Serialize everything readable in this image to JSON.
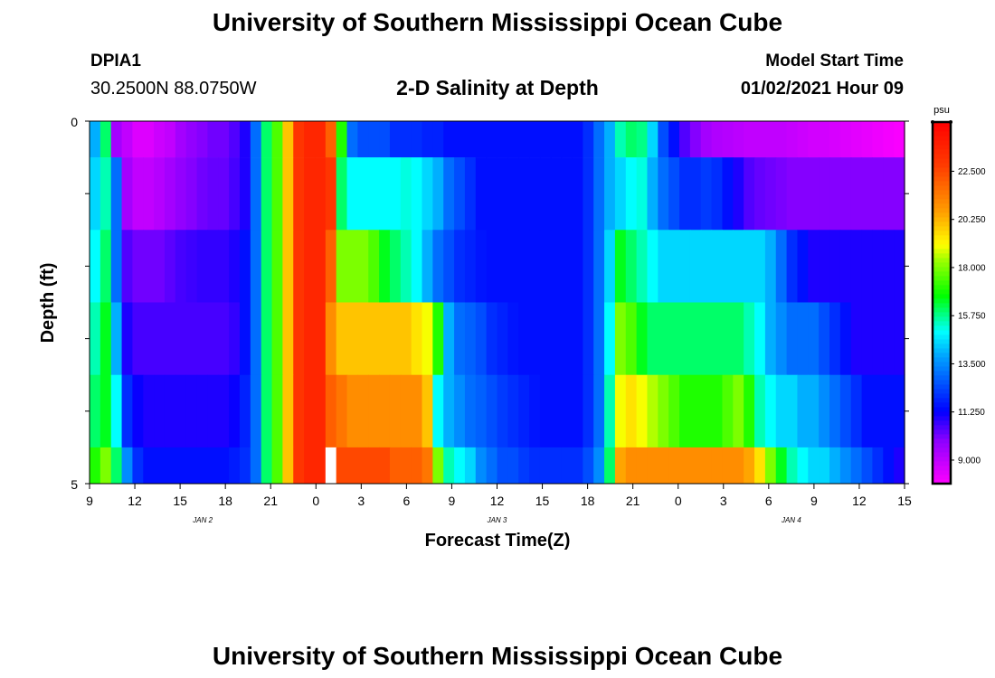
{
  "header": {
    "title": "University of Southern Mississippi Ocean Cube",
    "station_id": "DPIA1",
    "station_coords": "30.2500N 88.0750W",
    "plot_title": "2-D Salinity at Depth",
    "model_start_label": "Model Start Time",
    "model_start_value": "01/02/2021 Hour 09"
  },
  "footer": {
    "title": "University of Southern Mississippi Ocean Cube"
  },
  "chart_data": {
    "type": "heatmap",
    "title": "2-D Salinity at Depth",
    "xlabel": "Forecast Time(Z)",
    "ylabel": "Depth (ft)",
    "units": "psu",
    "x_ticks": [
      "9",
      "12",
      "15",
      "18",
      "21",
      "0",
      "3",
      "6",
      "9",
      "12",
      "15",
      "18",
      "21",
      "0",
      "3",
      "6",
      "9",
      "12",
      "15"
    ],
    "day_labels": [
      {
        "label": "JAN 2",
        "tick_index": 2.5
      },
      {
        "label": "JAN 3",
        "tick_index": 9
      },
      {
        "label": "JAN 4",
        "tick_index": 15.5
      }
    ],
    "y_ticks": [
      "0",
      "5"
    ],
    "yrange": [
      0,
      5
    ],
    "hours_range": [
      0,
      54
    ],
    "colorbar": {
      "ticks": [
        "9.000",
        "11.250",
        "13.500",
        "15.750",
        "18.000",
        "20.250",
        "22.500"
      ],
      "range": [
        7.9,
        24.8
      ]
    },
    "layer_bounds_ft": [
      0,
      0.5,
      1.5,
      2.5,
      3.5,
      4.5,
      5
    ],
    "series": [
      {
        "name": "layer 1 (0-0.5 ft)",
        "values": [
          14,
          16,
          9.5,
          9,
          8.5,
          8.5,
          8.8,
          9,
          9.5,
          9.8,
          10,
          10.2,
          10.2,
          10.5,
          11,
          13,
          16,
          17.5,
          20,
          23,
          23.5,
          23.5,
          22,
          17,
          13,
          12.5,
          12.5,
          12.5,
          12,
          12,
          12,
          11.8,
          11.8,
          11.5,
          11.5,
          11.5,
          11.5,
          11.5,
          11.5,
          11.5,
          11.5,
          11.5,
          11.5,
          11.5,
          11.5,
          11.5,
          12,
          13,
          14,
          15.5,
          16,
          15.8,
          14.5,
          12.5,
          11.5,
          10.5,
          10,
          9.5,
          9.3,
          9.2,
          9.1,
          9,
          9,
          9,
          9,
          8.9,
          8.8,
          8.7,
          8.7,
          8.6,
          8.5,
          8.4,
          8.3,
          8.2,
          8.1,
          8.0
        ]
      },
      {
        "name": "layer 2 (0.5-1.5 ft)",
        "values": [
          14.5,
          15.5,
          13,
          9.5,
          9,
          9,
          9.2,
          9.5,
          9.8,
          10,
          10.2,
          10.3,
          10.3,
          10.6,
          11,
          13,
          16,
          17.5,
          20,
          23,
          23.5,
          23.5,
          23,
          16,
          15,
          15,
          15,
          15,
          15,
          15.2,
          15,
          14.5,
          14,
          13,
          12.5,
          12,
          11.5,
          11.5,
          11.5,
          11.5,
          11.5,
          11.5,
          11.5,
          11.5,
          11.5,
          11.5,
          12,
          13,
          14,
          14.5,
          15,
          15.2,
          14,
          13,
          12.5,
          12,
          12,
          12.2,
          12,
          11.5,
          11,
          10.5,
          10.3,
          10.2,
          10.1,
          10,
          10,
          10,
          10,
          10,
          10,
          10,
          10,
          10,
          10,
          10
        ]
      },
      {
        "name": "layer 3 (1.5-2.5 ft)",
        "values": [
          15,
          16,
          13,
          10.5,
          10.2,
          10.2,
          10.2,
          10.4,
          10.6,
          10.7,
          10.8,
          10.8,
          10.8,
          11,
          11.5,
          13,
          16,
          17.5,
          20,
          23,
          23.5,
          23.5,
          22,
          18,
          18,
          18,
          17.5,
          16.5,
          16,
          15.5,
          15,
          14,
          13,
          12.5,
          12,
          11.8,
          11.6,
          11.5,
          11.5,
          11.5,
          11.5,
          11.5,
          11.5,
          11.5,
          11.5,
          11.5,
          12,
          13,
          14.5,
          16.5,
          16,
          15.5,
          15,
          14.5,
          14.5,
          14.5,
          14.5,
          14.5,
          14.5,
          14.5,
          14.5,
          14.5,
          14.5,
          14,
          13,
          12,
          11.5,
          11,
          11,
          11,
          11,
          11,
          11,
          11,
          11,
          11
        ]
      },
      {
        "name": "layer 4 (2.5-3.5 ft)",
        "values": [
          15.5,
          16.5,
          14,
          11,
          10.6,
          10.6,
          10.6,
          10.6,
          10.6,
          10.6,
          10.6,
          10.6,
          10.6,
          10.8,
          11.5,
          13,
          16,
          17.5,
          20,
          23,
          23.5,
          23.5,
          21,
          20,
          20,
          20,
          20,
          20,
          20,
          20,
          19.5,
          19,
          17,
          14,
          13,
          12.8,
          12.5,
          12,
          11.8,
          11.6,
          11.5,
          11.5,
          11.5,
          11.5,
          11.5,
          11.5,
          12,
          13,
          15,
          18,
          17.5,
          16.5,
          16,
          16,
          16,
          16,
          16,
          16,
          16,
          16,
          16,
          15.5,
          15,
          14,
          13.5,
          13,
          13,
          13,
          12.5,
          12,
          11.5,
          11,
          11,
          11,
          11,
          11
        ]
      },
      {
        "name": "layer 5 (3.5-4.5 ft)",
        "values": [
          16,
          16.5,
          15,
          12,
          11.2,
          11,
          11,
          11,
          11,
          11,
          11,
          11,
          11,
          11.2,
          11.8,
          13,
          16,
          17.5,
          20,
          23,
          23.5,
          23.5,
          22,
          21.5,
          21,
          21,
          21,
          21,
          21,
          21,
          21,
          20,
          15,
          14,
          13.5,
          13,
          12.8,
          12.5,
          12.2,
          12,
          11.8,
          11.6,
          11.5,
          11.5,
          11.5,
          11.5,
          12,
          13,
          15.5,
          19,
          19.5,
          19,
          18.5,
          18,
          17.5,
          17,
          17,
          17,
          17,
          17.5,
          18,
          17,
          15.5,
          15,
          14.5,
          14.5,
          14,
          14,
          13.5,
          13,
          12.5,
          12,
          11.5,
          11.5,
          11.5,
          11.5
        ]
      },
      {
        "name": "layer 6 (4.5-5 ft)",
        "values": [
          17,
          18,
          16,
          13.5,
          12,
          11.5,
          11.5,
          11.5,
          11.5,
          11.5,
          11.5,
          11.5,
          11.5,
          11.7,
          12,
          13,
          16,
          17.5,
          20,
          23,
          23.5,
          23.5,
          null,
          22.5,
          22.5,
          22.5,
          22.5,
          22.5,
          22,
          22,
          22,
          21.5,
          18,
          15.5,
          15,
          14.5,
          13.5,
          13,
          12.5,
          12.5,
          12.2,
          12,
          12,
          12,
          12,
          12,
          12.5,
          13.5,
          16,
          20.5,
          21,
          21,
          21,
          21,
          21,
          21,
          21,
          21,
          21,
          21,
          21,
          20.5,
          19.5,
          18,
          16.5,
          15.5,
          15,
          14.5,
          14.5,
          14,
          13.5,
          13,
          12.5,
          12,
          11.5,
          11
        ]
      }
    ]
  }
}
